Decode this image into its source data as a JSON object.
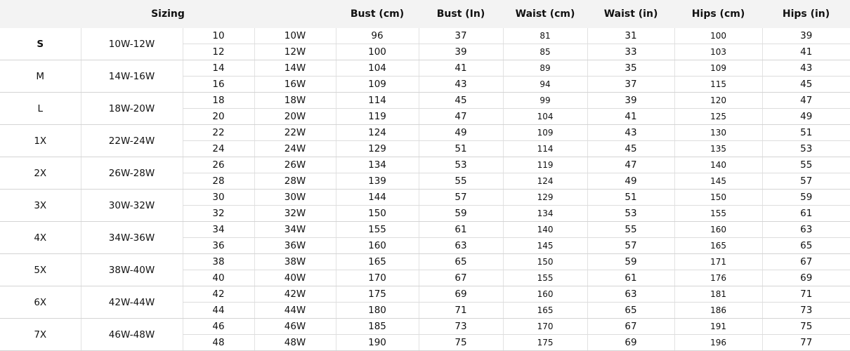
{
  "headers": {
    "sizing": "Sizing",
    "bust_cm": "Bust (cm)",
    "bust_in": "Bust (In)",
    "waist_cm": "Waist (cm)",
    "waist_in": "Waist (in)",
    "hips_cm": "Hips (cm)",
    "hips_in": "Hips (in)"
  },
  "groups": [
    {
      "size": "S",
      "range": "10W-12W",
      "rows": [
        [
          "10",
          "10W",
          "96",
          "37",
          "81",
          "31",
          "100",
          "39"
        ],
        [
          "12",
          "12W",
          "100",
          "39",
          "85",
          "33",
          "103",
          "41"
        ]
      ]
    },
    {
      "size": "M",
      "range": "14W-16W",
      "rows": [
        [
          "14",
          "14W",
          "104",
          "41",
          "89",
          "35",
          "109",
          "43"
        ],
        [
          "16",
          "16W",
          "109",
          "43",
          "94",
          "37",
          "115",
          "45"
        ]
      ]
    },
    {
      "size": "L",
      "range": "18W-20W",
      "rows": [
        [
          "18",
          "18W",
          "114",
          "45",
          "99",
          "39",
          "120",
          "47"
        ],
        [
          "20",
          "20W",
          "119",
          "47",
          "104",
          "41",
          "125",
          "49"
        ]
      ]
    },
    {
      "size": "1X",
      "range": "22W-24W",
      "rows": [
        [
          "22",
          "22W",
          "124",
          "49",
          "109",
          "43",
          "130",
          "51"
        ],
        [
          "24",
          "24W",
          "129",
          "51",
          "114",
          "45",
          "135",
          "53"
        ]
      ]
    },
    {
      "size": "2X",
      "range": "26W-28W",
      "rows": [
        [
          "26",
          "26W",
          "134",
          "53",
          "119",
          "47",
          "140",
          "55"
        ],
        [
          "28",
          "28W",
          "139",
          "55",
          "124",
          "49",
          "145",
          "57"
        ]
      ]
    },
    {
      "size": "3X",
      "range": "30W-32W",
      "rows": [
        [
          "30",
          "30W",
          "144",
          "57",
          "129",
          "51",
          "150",
          "59"
        ],
        [
          "32",
          "32W",
          "150",
          "59",
          "134",
          "53",
          "155",
          "61"
        ]
      ]
    },
    {
      "size": "4X",
      "range": "34W-36W",
      "rows": [
        [
          "34",
          "34W",
          "155",
          "61",
          "140",
          "55",
          "160",
          "63"
        ],
        [
          "36",
          "36W",
          "160",
          "63",
          "145",
          "57",
          "165",
          "65"
        ]
      ]
    },
    {
      "size": "5X",
      "range": "38W-40W",
      "rows": [
        [
          "38",
          "38W",
          "165",
          "65",
          "150",
          "59",
          "171",
          "67"
        ],
        [
          "40",
          "40W",
          "170",
          "67",
          "155",
          "61",
          "176",
          "69"
        ]
      ]
    },
    {
      "size": "6X",
      "range": "42W-44W",
      "rows": [
        [
          "42",
          "42W",
          "175",
          "69",
          "160",
          "63",
          "181",
          "71"
        ],
        [
          "44",
          "44W",
          "180",
          "71",
          "165",
          "65",
          "186",
          "73"
        ]
      ]
    },
    {
      "size": "7X",
      "range": "46W-48W",
      "rows": [
        [
          "46",
          "46W",
          "185",
          "73",
          "170",
          "67",
          "191",
          "75"
        ],
        [
          "48",
          "48W",
          "190",
          "75",
          "175",
          "69",
          "196",
          "77"
        ]
      ]
    }
  ]
}
